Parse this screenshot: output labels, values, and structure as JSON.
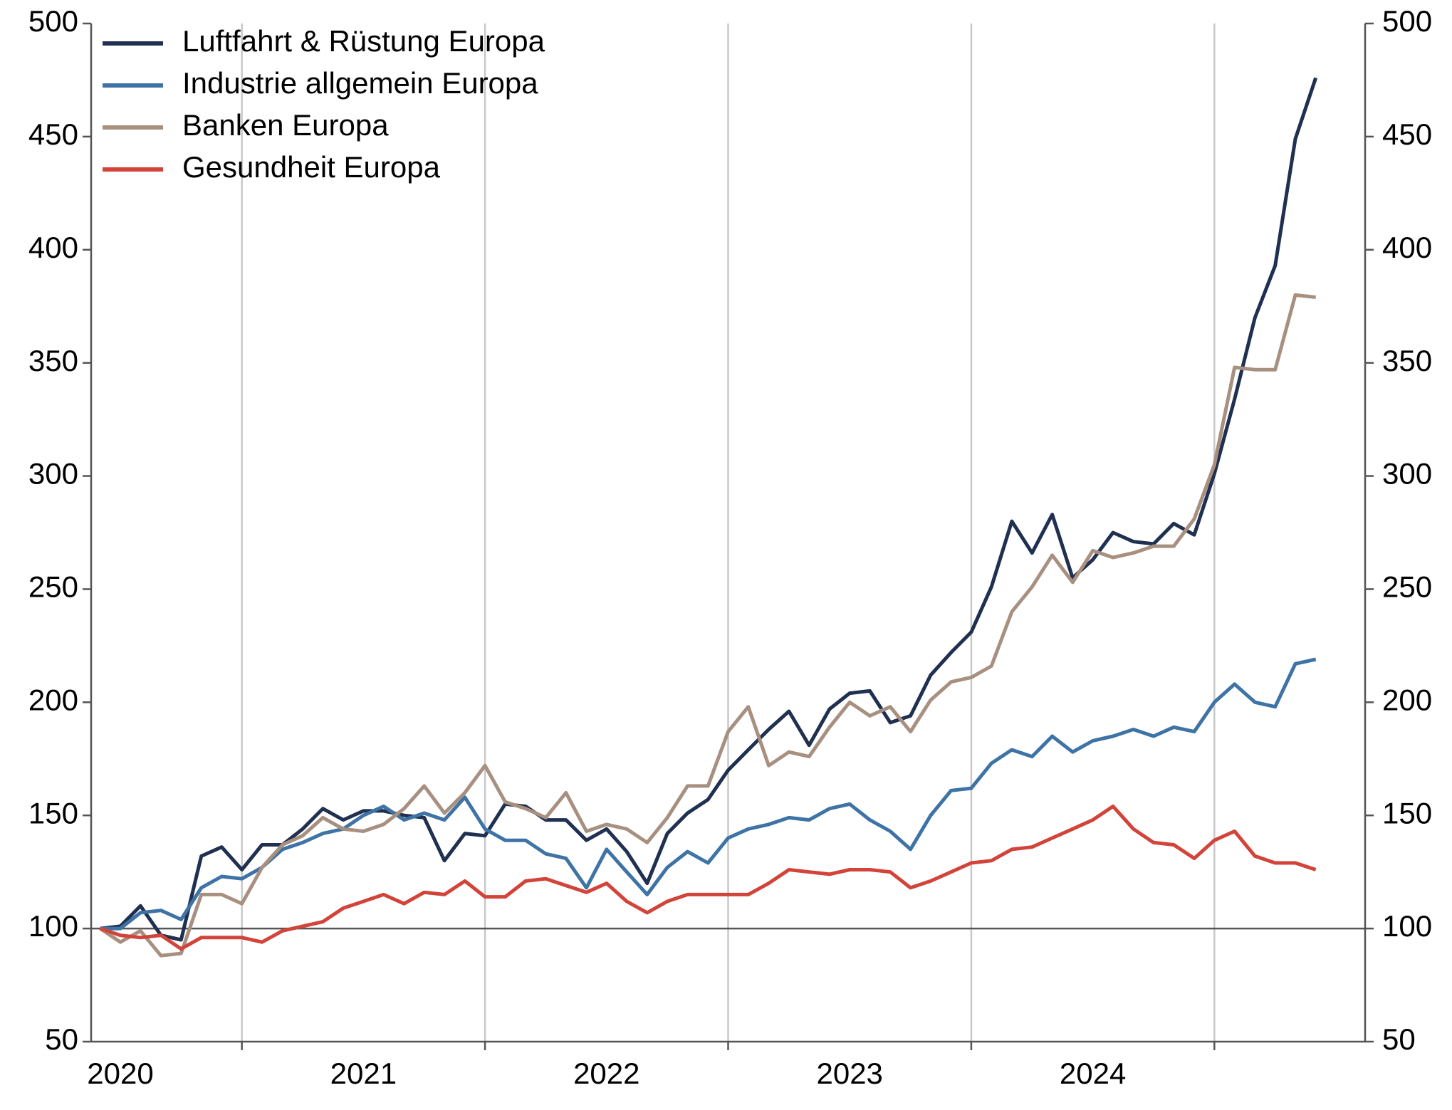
{
  "chart_data": {
    "type": "line",
    "x": [
      2019.917,
      2020.0,
      2020.083,
      2020.167,
      2020.25,
      2020.333,
      2020.417,
      2020.5,
      2020.583,
      2020.667,
      2020.75,
      2020.833,
      2020.917,
      2021.0,
      2021.083,
      2021.167,
      2021.25,
      2021.333,
      2021.417,
      2021.5,
      2021.583,
      2021.667,
      2021.75,
      2021.833,
      2021.917,
      2022.0,
      2022.083,
      2022.167,
      2022.25,
      2022.333,
      2022.417,
      2022.5,
      2022.583,
      2022.667,
      2022.75,
      2022.833,
      2022.917,
      2023.0,
      2023.083,
      2023.167,
      2023.25,
      2023.333,
      2023.417,
      2023.5,
      2023.583,
      2023.667,
      2023.75,
      2023.833,
      2023.917,
      2024.0,
      2024.083,
      2024.167,
      2024.25,
      2024.333,
      2024.417,
      2024.5,
      2024.583,
      2024.667,
      2024.75,
      2024.833,
      2024.917
    ],
    "series": [
      {
        "name": "Luftfahrt & Rüstung Europa",
        "color": "#1f3050",
        "values": [
          100,
          101,
          110,
          97,
          95,
          132,
          136,
          126,
          137,
          137,
          144,
          153,
          148,
          152,
          152,
          150,
          149,
          130,
          142,
          141,
          155,
          154,
          148,
          148,
          139,
          144,
          134,
          120,
          142,
          151,
          157,
          170,
          179,
          188,
          196,
          181,
          197,
          204,
          205,
          191,
          194,
          212,
          222,
          231,
          251,
          280,
          266,
          283,
          255,
          263,
          275,
          271,
          270,
          279,
          274,
          301,
          334,
          370,
          393,
          449,
          476
        ]
      },
      {
        "name": "Industrie allgemein Europa",
        "color": "#3e73a5",
        "values": [
          100,
          100,
          107,
          108,
          104,
          118,
          123,
          122,
          127,
          135,
          138,
          142,
          144,
          150,
          154,
          148,
          151,
          148,
          158,
          144,
          139,
          139,
          133,
          131,
          118,
          135,
          125,
          115,
          127,
          134,
          129,
          140,
          144,
          146,
          149,
          148,
          153,
          155,
          148,
          143,
          135,
          150,
          161,
          162,
          173,
          179,
          176,
          185,
          178,
          183,
          185,
          188,
          185,
          189,
          187,
          200,
          208,
          200,
          198,
          217,
          219
        ]
      },
      {
        "name": "Banken Europa",
        "color": "#a89080",
        "values": [
          100,
          94,
          99,
          88,
          89,
          115,
          115,
          111,
          127,
          137,
          141,
          149,
          144,
          143,
          146,
          153,
          163,
          151,
          160,
          172,
          156,
          153,
          149,
          160,
          143,
          146,
          144,
          138,
          149,
          163,
          163,
          187,
          198,
          172,
          178,
          176,
          189,
          200,
          194,
          198,
          187,
          201,
          209,
          211,
          216,
          240,
          251,
          265,
          253,
          267,
          264,
          266,
          269,
          269,
          281,
          305,
          348,
          347,
          347,
          380,
          379
        ]
      },
      {
        "name": "Gesundheit Europa",
        "color": "#d2443a",
        "values": [
          100,
          97,
          96,
          97,
          91,
          96,
          96,
          96,
          94,
          99,
          101,
          103,
          109,
          112,
          115,
          111,
          116,
          115,
          121,
          114,
          114,
          121,
          122,
          119,
          116,
          120,
          112,
          107,
          112,
          115,
          115,
          115,
          115,
          120,
          126,
          125,
          124,
          126,
          126,
          125,
          118,
          121,
          125,
          129,
          130,
          135,
          136,
          140,
          144,
          148,
          154,
          144,
          138,
          137,
          131,
          139,
          143,
          132,
          129,
          129,
          126
        ]
      }
    ],
    "xlim": [
      2019.88,
      2025.12
    ],
    "xticks": [
      2020,
      2021,
      2022,
      2023,
      2024
    ],
    "xgrid": [
      2020.5,
      2021.5,
      2022.5,
      2023.5,
      2024.5
    ],
    "ylim": [
      50,
      500
    ],
    "yticks": [
      50,
      100,
      150,
      200,
      250,
      300,
      350,
      400,
      450,
      500
    ],
    "y2lim": [
      50,
      500
    ],
    "y2ticks": [
      50,
      100,
      150,
      200,
      250,
      300,
      350,
      400,
      450,
      500
    ],
    "reference_line": 100,
    "legend": "upper left",
    "grid": true
  }
}
